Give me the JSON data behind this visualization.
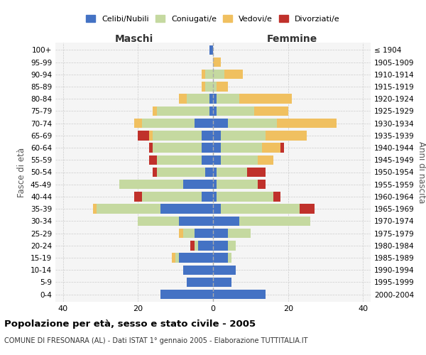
{
  "age_groups": [
    "0-4",
    "5-9",
    "10-14",
    "15-19",
    "20-24",
    "25-29",
    "30-34",
    "35-39",
    "40-44",
    "45-49",
    "50-54",
    "55-59",
    "60-64",
    "65-69",
    "70-74",
    "75-79",
    "80-84",
    "85-89",
    "90-94",
    "95-99",
    "100+"
  ],
  "birth_years": [
    "2000-2004",
    "1995-1999",
    "1990-1994",
    "1985-1989",
    "1980-1984",
    "1975-1979",
    "1970-1974",
    "1965-1969",
    "1960-1964",
    "1955-1959",
    "1950-1954",
    "1945-1949",
    "1940-1944",
    "1935-1939",
    "1930-1934",
    "1925-1929",
    "1920-1924",
    "1915-1919",
    "1910-1914",
    "1905-1909",
    "≤ 1904"
  ],
  "maschi": {
    "celibi": [
      14,
      7,
      8,
      9,
      4,
      5,
      9,
      14,
      3,
      8,
      2,
      3,
      3,
      3,
      5,
      1,
      1,
      0,
      0,
      0,
      1
    ],
    "coniugati": [
      0,
      0,
      0,
      1,
      1,
      3,
      11,
      17,
      16,
      17,
      13,
      12,
      13,
      13,
      14,
      14,
      6,
      2,
      2,
      0,
      0
    ],
    "vedovi": [
      0,
      0,
      0,
      1,
      0,
      1,
      0,
      1,
      0,
      0,
      0,
      0,
      0,
      1,
      2,
      1,
      2,
      1,
      1,
      0,
      0
    ],
    "divorziati": [
      0,
      0,
      0,
      0,
      1,
      0,
      0,
      0,
      2,
      0,
      1,
      2,
      1,
      3,
      0,
      0,
      0,
      0,
      0,
      0,
      0
    ]
  },
  "femmine": {
    "nubili": [
      14,
      5,
      6,
      4,
      4,
      4,
      7,
      2,
      1,
      1,
      1,
      2,
      2,
      2,
      4,
      1,
      1,
      0,
      0,
      0,
      0
    ],
    "coniugate": [
      0,
      0,
      0,
      1,
      2,
      6,
      19,
      21,
      15,
      11,
      8,
      10,
      11,
      12,
      13,
      10,
      6,
      1,
      3,
      0,
      0
    ],
    "vedove": [
      0,
      0,
      0,
      0,
      0,
      0,
      0,
      0,
      0,
      0,
      0,
      4,
      5,
      11,
      16,
      9,
      14,
      3,
      5,
      2,
      0
    ],
    "divorziate": [
      0,
      0,
      0,
      0,
      0,
      0,
      0,
      4,
      2,
      2,
      5,
      0,
      1,
      0,
      0,
      0,
      0,
      0,
      0,
      0,
      0
    ]
  },
  "colors": {
    "celibi_nubili": "#4472c4",
    "coniugati": "#c5d9a0",
    "vedovi": "#f0c060",
    "divorziati": "#c0312b"
  },
  "xlim": 42,
  "title": "Popolazione per età, sesso e stato civile - 2005",
  "subtitle": "COMUNE DI FRESONARA (AL) - Dati ISTAT 1° gennaio 2005 - Elaborazione TUTTITALIA.IT",
  "ylabel_left": "Fasce di età",
  "ylabel_right": "Anni di nascita",
  "xlabel_left": "Maschi",
  "xlabel_right": "Femmine"
}
